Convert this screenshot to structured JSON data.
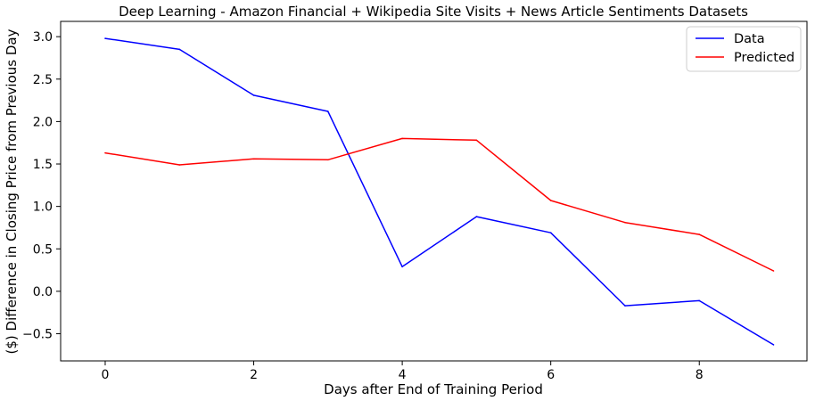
{
  "chart_data": {
    "type": "line",
    "title": "Deep Learning -  Amazon Financial + Wikipedia Site Visits + News Article Sentiments Datasets",
    "xlabel": "Days after End of Training Period",
    "ylabel": "($) Difference in Closing Price from Previous Day",
    "xlim": [
      -0.6,
      9.45
    ],
    "ylim": [
      -0.82,
      3.18
    ],
    "xticks": [
      0,
      2,
      4,
      6,
      8
    ],
    "xtick_labels": [
      "0",
      "2",
      "4",
      "6",
      "8"
    ],
    "yticks": [
      -0.5,
      0.0,
      0.5,
      1.0,
      1.5,
      2.0,
      2.5,
      3.0
    ],
    "ytick_labels": [
      "−0.5",
      "0.0",
      "0.5",
      "1.0",
      "1.5",
      "2.0",
      "2.5",
      "3.0"
    ],
    "x": [
      0,
      1,
      2,
      3,
      4,
      5,
      6,
      7,
      8,
      9
    ],
    "series": [
      {
        "name": "Data",
        "color": "#0000ff",
        "values": [
          2.98,
          2.85,
          2.31,
          2.12,
          0.29,
          0.88,
          0.69,
          -0.17,
          -0.11,
          -0.63
        ]
      },
      {
        "name": "Predicted",
        "color": "#ff0000",
        "values": [
          1.63,
          1.49,
          1.56,
          1.55,
          1.8,
          1.78,
          1.07,
          0.81,
          0.67,
          0.24
        ]
      }
    ],
    "grid": false,
    "legend": "top-right"
  }
}
